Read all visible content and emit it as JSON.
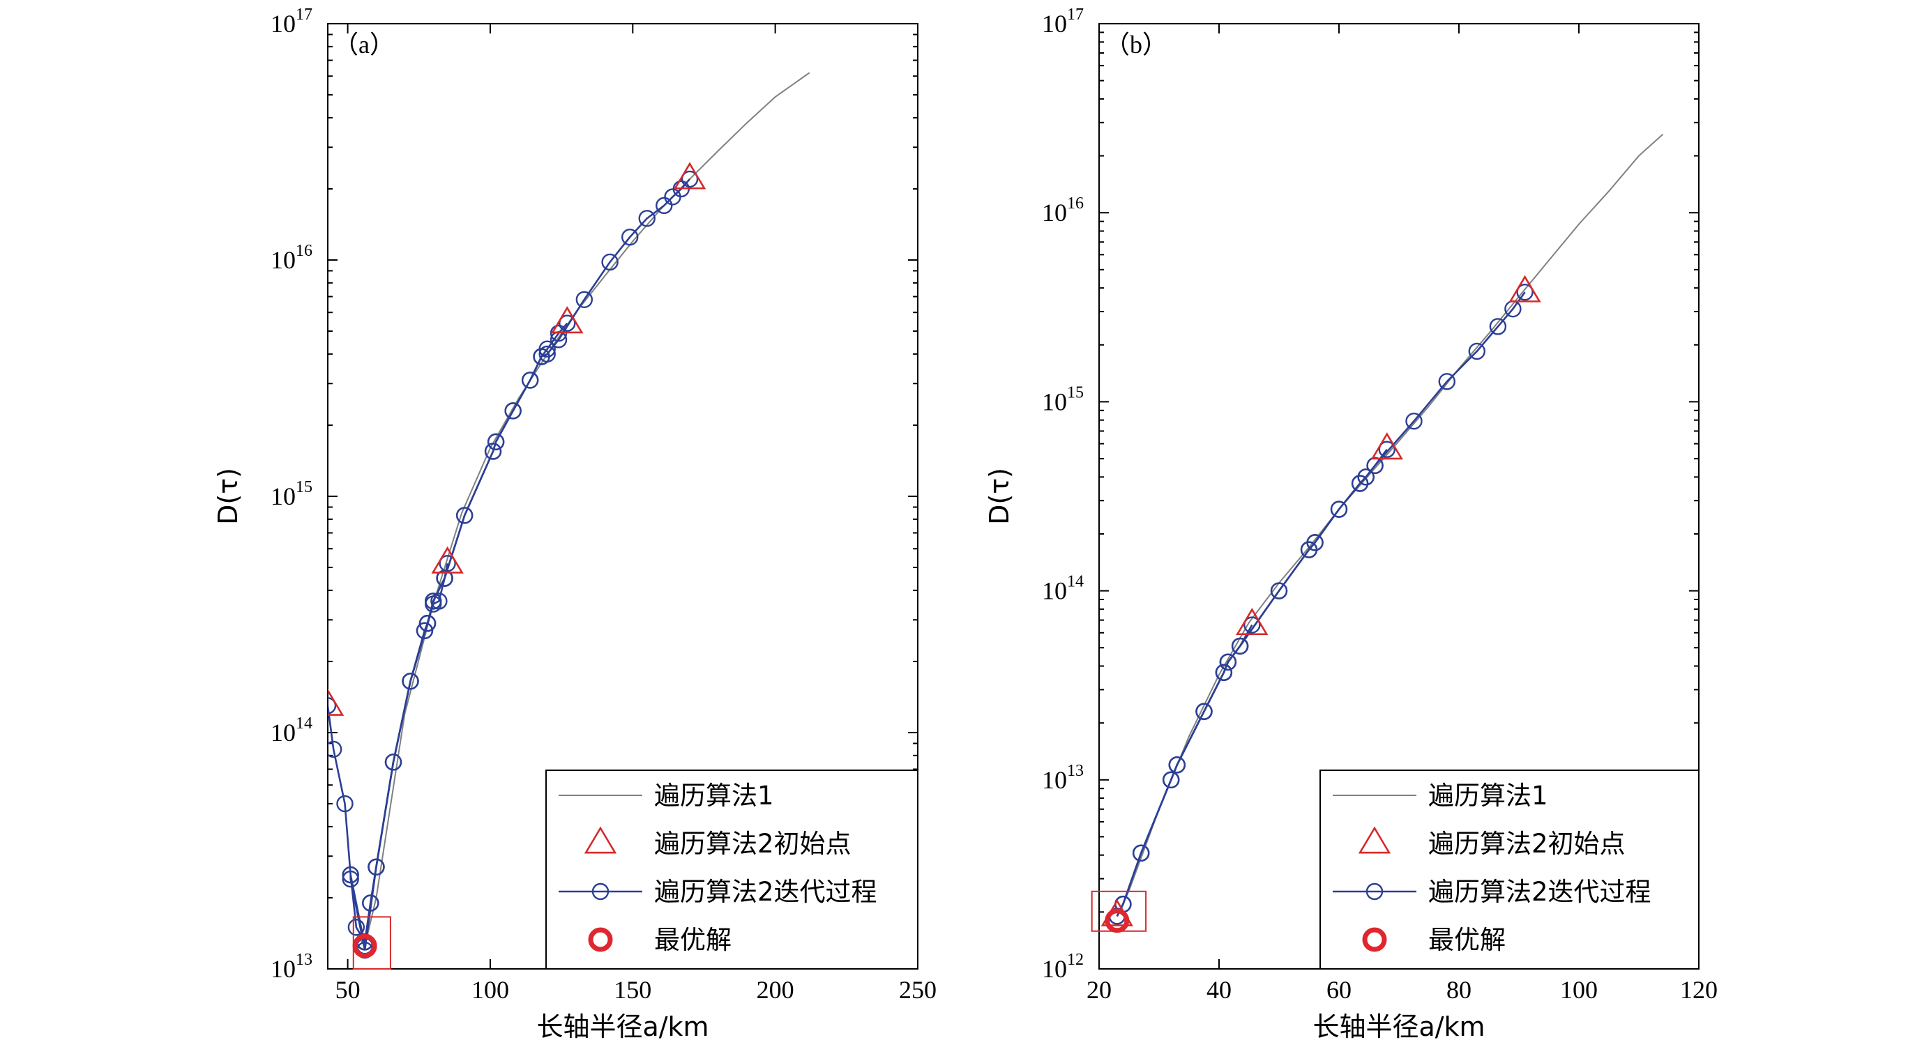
{
  "legend": {
    "gray_line": "遍历算法1",
    "triangles": "遍历算法2初始点",
    "circles_line": "遍历算法2迭代过程",
    "best": "最优解"
  },
  "colors": {
    "gray": "#808080",
    "blue": "#2b3f96",
    "red": "#d62a2a",
    "best": "#e0262f"
  },
  "chart_data": [
    {
      "type": "line",
      "panel_label": "（a）",
      "xlabel": "长轴半径a/km",
      "ylabel": "D(τ)",
      "y_scale": "log",
      "xlim": [
        43,
        250
      ],
      "ylim_exp": [
        13,
        17
      ],
      "x_ticks": [
        50,
        100,
        150,
        200,
        250
      ],
      "y_ticks_exp": [
        13,
        14,
        15,
        16,
        17
      ],
      "legend_position": "bottom-right",
      "series": [
        {
          "name": "遍历算法1",
          "kind": "line",
          "x": [
            53,
            56,
            60,
            70,
            80,
            90,
            100,
            110,
            120,
            130,
            140,
            150,
            160,
            170,
            180,
            190,
            200,
            212
          ],
          "y": [
            14000000000000.0,
            12500000000000.0,
            20000000000000.0,
            120000000000000.0,
            350000000000000.0,
            850000000000000.0,
            1600000000000000.0,
            2600000000000000.0,
            4000000000000000.0,
            6000000000000000.0,
            8500000000000000.0,
            1.2e+16,
            1.65e+16,
            2.2e+16,
            2.9e+16,
            3.8e+16,
            4.9e+16,
            6.2e+16
          ]
        },
        {
          "name": "遍历算法2初始点",
          "kind": "marker",
          "x": [
            43,
            85,
            127,
            170
          ],
          "y": [
            130000000000000.0,
            520000000000000.0,
            5400000000000000.0,
            2.2e+16
          ]
        },
        {
          "name": "遍历算法2迭代过程 (start 43)",
          "kind": "line-marker",
          "x": [
            43,
            45,
            49,
            51,
            53,
            56
          ],
          "y": [
            130000000000000.0,
            85000000000000.0,
            50000000000000.0,
            25000000000000.0,
            15000000000000.0,
            13000000000000.0
          ]
        },
        {
          "name": "遍历算法2迭代过程 (start 85)",
          "kind": "line-marker",
          "x": [
            85,
            84,
            82,
            80,
            78,
            77,
            72,
            66,
            60,
            58,
            56
          ],
          "y": [
            520000000000000.0,
            450000000000000.0,
            360000000000000.0,
            350000000000000.0,
            290000000000000.0,
            270000000000000.0,
            165000000000000.0,
            75000000000000.0,
            27000000000000.0,
            19000000000000.0,
            13000000000000.0
          ]
        },
        {
          "name": "遍历算法2迭代过程 (start 127)",
          "kind": "line-marker",
          "x": [
            127,
            124,
            120,
            118,
            114,
            108,
            102,
            101,
            91,
            84,
            80,
            78,
            77,
            72,
            66,
            60,
            58,
            56
          ],
          "y": [
            5400000000000000.0,
            4900000000000000.0,
            4200000000000000.0,
            3900000000000000.0,
            3100000000000000.0,
            2300000000000000.0,
            1700000000000000.0,
            1550000000000000.0,
            830000000000000.0,
            450000000000000.0,
            360000000000000.0,
            290000000000000.0,
            270000000000000.0,
            165000000000000.0,
            75000000000000.0,
            27000000000000.0,
            19000000000000.0,
            13000000000000.0
          ]
        },
        {
          "name": "遍历算法2迭代过程 (start 170)",
          "kind": "line-marker",
          "x": [
            170,
            167,
            164,
            161,
            155,
            149,
            142,
            133,
            124,
            120,
            118,
            114,
            108,
            102,
            101,
            91,
            84,
            80,
            78,
            72,
            66,
            60,
            56,
            51,
            51,
            56
          ],
          "y": [
            2.2e+16,
            2e+16,
            1.85e+16,
            1.7e+16,
            1.5e+16,
            1.25e+16,
            9800000000000000.0,
            6800000000000000.0,
            4600000000000000.0,
            4000000000000000.0,
            3900000000000000.0,
            3100000000000000.0,
            2300000000000000.0,
            1700000000000000.0,
            1550000000000000.0,
            830000000000000.0,
            450000000000000.0,
            360000000000000.0,
            290000000000000.0,
            165000000000000.0,
            75000000000000.0,
            27000000000000.0,
            12000000000000.0,
            24000000000000.0,
            25000000000000.0,
            12500000000000.0
          ]
        },
        {
          "name": "最优解",
          "kind": "best",
          "x": [
            56
          ],
          "y": [
            12500000000000.0
          ]
        }
      ],
      "zoom_box": {
        "x": [
          52,
          65
        ],
        "y_exp": [
          13.0,
          13.22
        ]
      }
    },
    {
      "type": "line",
      "panel_label": "（b）",
      "xlabel": "长轴半径a/km",
      "ylabel": "D(τ)",
      "y_scale": "log",
      "xlim": [
        20,
        120
      ],
      "ylim_exp": [
        12,
        17
      ],
      "x_ticks": [
        20,
        40,
        60,
        80,
        100,
        120
      ],
      "y_ticks_exp": [
        12,
        13,
        14,
        15,
        16,
        17
      ],
      "legend_position": "bottom-right",
      "series": [
        {
          "name": "遍历算法1",
          "kind": "line",
          "x": [
            23,
            25,
            30,
            35,
            40,
            45,
            50,
            55,
            60,
            65,
            70,
            75,
            80,
            85,
            90,
            95,
            100,
            105,
            110,
            114
          ],
          "y": [
            1900000000000.0,
            2600000000000.0,
            7000000000000.0,
            17000000000000.0,
            36000000000000.0,
            68000000000000.0,
            110000000000000.0,
            170000000000000.0,
            270000000000000.0,
            410000000000000.0,
            620000000000000.0,
            950000000000000.0,
            1500000000000000.0,
            2300000000000000.0,
            3600000000000000.0,
            5600000000000000.0,
            8700000000000000.0,
            1.3e+16,
            2e+16,
            2.6e+16
          ]
        },
        {
          "name": "遍历算法2初始点",
          "kind": "marker",
          "x": [
            23,
            45.5,
            68,
            91
          ],
          "y": [
            1900000000000.0,
            66000000000000.0,
            560000000000000.0,
            3800000000000000.0
          ]
        },
        {
          "name": "遍历算法2迭代过程 (start 45.5)",
          "kind": "line-marker",
          "x": [
            45.5,
            43.5,
            41.5,
            40.8,
            37.5,
            33,
            32,
            27,
            24,
            23
          ],
          "y": [
            66000000000000.0,
            51000000000000.0,
            42000000000000.0,
            37000000000000.0,
            23000000000000.0,
            12000000000000.0,
            10000000000000.0,
            4100000000000.0,
            2200000000000.0,
            1900000000000.0
          ]
        },
        {
          "name": "遍历算法2迭代过程 (start 68)",
          "kind": "line-marker",
          "x": [
            68,
            66,
            64.5,
            63.5,
            60,
            56,
            55,
            50,
            43.5,
            41.5,
            40.8,
            37.5,
            33,
            32,
            27,
            24,
            23
          ],
          "y": [
            560000000000000.0,
            460000000000000.0,
            400000000000000.0,
            370000000000000.0,
            270000000000000.0,
            180000000000000.0,
            165000000000000.0,
            100000000000000.0,
            51000000000000.0,
            42000000000000.0,
            37000000000000.0,
            23000000000000.0,
            12000000000000.0,
            10000000000000.0,
            4100000000000.0,
            2200000000000.0,
            1900000000000.0
          ]
        },
        {
          "name": "遍历算法2迭代过程 (start 91)",
          "kind": "line-marker",
          "x": [
            91,
            89,
            86.5,
            83,
            78,
            72.5,
            66,
            64.5,
            63.5,
            60,
            56,
            55,
            50,
            43.5,
            41.5,
            40.8,
            37.5,
            33,
            32,
            27,
            24,
            23
          ],
          "y": [
            3800000000000000.0,
            3100000000000000.0,
            2500000000000000.0,
            1850000000000000.0,
            1280000000000000.0,
            790000000000000.0,
            460000000000000.0,
            400000000000000.0,
            370000000000000.0,
            270000000000000.0,
            180000000000000.0,
            165000000000000.0,
            100000000000000.0,
            51000000000000.0,
            42000000000000.0,
            37000000000000.0,
            23000000000000.0,
            12000000000000.0,
            10000000000000.0,
            4100000000000.0,
            2200000000000.0,
            1900000000000.0
          ]
        },
        {
          "name": "最优解",
          "kind": "best",
          "x": [
            23
          ],
          "y": [
            1800000000000.0
          ]
        }
      ],
      "zoom_box": {
        "x": [
          18.8,
          27.8
        ],
        "y_exp": [
          12.2,
          12.41
        ]
      }
    }
  ]
}
